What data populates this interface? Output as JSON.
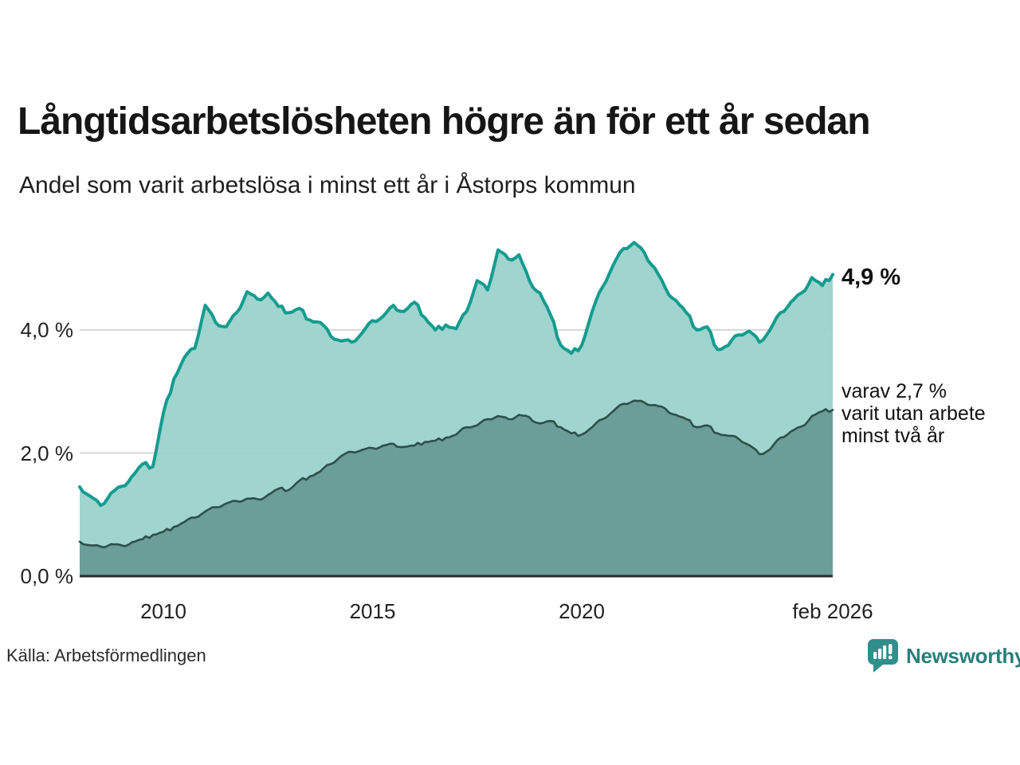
{
  "header": {
    "title": "Långtidsarbetslösheten högre än för ett år sedan",
    "subtitle": "Andel som varit arbetslösa i minst ett år i Åstorps kommun"
  },
  "chart_data": {
    "type": "area",
    "title": "Långtidsarbetslösheten högre än för ett år sedan",
    "subtitle": "Andel som varit arbetslösa i minst ett år i Åstorps kommun",
    "unit": "%",
    "resolution": "quarterly",
    "x_start": "2008-02",
    "x_end": "2026-02",
    "ylim": [
      0,
      5.6
    ],
    "grid": "horizontal",
    "colors": {
      "longterm_line": "#169b8f",
      "longterm_fill": "#98d2ca",
      "verylong_line": "#2e4f49",
      "verylong_fill": "#679995",
      "gridline": "#d8d8d8",
      "axis": "#2a2a2a"
    },
    "y_ticks": [
      {
        "label": "0,0 %",
        "value": 0
      },
      {
        "label": "2,0 %",
        "value": 2
      },
      {
        "label": "4,0 %",
        "value": 4
      }
    ],
    "x_ticks": [
      {
        "label": "2010",
        "index": 8
      },
      {
        "label": "2015",
        "index": 28
      },
      {
        "label": "2020",
        "index": 48
      },
      {
        "label": "feb 2026",
        "index": 72
      }
    ],
    "series": [
      {
        "name": "Arbetslösa minst ett år",
        "end_value": 4.9,
        "values": [
          1.45,
          1.3,
          1.15,
          1.35,
          1.46,
          1.62,
          1.82,
          1.78,
          2.65,
          3.2,
          3.55,
          3.7,
          4.4,
          4.12,
          4.05,
          4.28,
          4.62,
          4.5,
          4.6,
          4.38,
          4.28,
          4.35,
          4.16,
          4.12,
          3.9,
          3.82,
          3.8,
          3.95,
          4.15,
          4.22,
          4.4,
          4.3,
          4.45,
          4.2,
          4.0,
          4.08,
          4.02,
          4.3,
          4.8,
          4.65,
          5.3,
          5.15,
          5.22,
          4.8,
          4.6,
          4.25,
          3.75,
          3.62,
          3.75,
          4.3,
          4.7,
          5.05,
          5.32,
          5.42,
          5.25,
          5.0,
          4.68,
          4.48,
          4.28,
          4.0,
          4.05,
          3.68,
          3.75,
          3.92,
          3.98,
          3.8,
          4.0,
          4.28,
          4.45,
          4.6,
          4.85,
          4.72,
          4.9
        ]
      },
      {
        "name": "varav arbetslösa minst två år",
        "end_value": 2.7,
        "values": [
          0.56,
          0.5,
          0.48,
          0.52,
          0.5,
          0.55,
          0.6,
          0.67,
          0.72,
          0.8,
          0.88,
          0.95,
          1.05,
          1.12,
          1.18,
          1.22,
          1.26,
          1.25,
          1.32,
          1.42,
          1.4,
          1.55,
          1.62,
          1.7,
          1.82,
          1.95,
          2.02,
          2.05,
          2.08,
          2.12,
          2.15,
          2.1,
          2.12,
          2.18,
          2.2,
          2.25,
          2.3,
          2.42,
          2.45,
          2.55,
          2.6,
          2.55,
          2.62,
          2.58,
          2.48,
          2.52,
          2.42,
          2.32,
          2.3,
          2.42,
          2.55,
          2.68,
          2.8,
          2.85,
          2.82,
          2.78,
          2.72,
          2.62,
          2.55,
          2.42,
          2.45,
          2.32,
          2.28,
          2.23,
          2.13,
          1.98,
          2.06,
          2.25,
          2.35,
          2.43,
          2.6,
          2.68,
          2.7
        ]
      }
    ]
  },
  "annotations": {
    "series1_value": "4,9 %",
    "series2_line1": "varav 2,7 %",
    "series2_line2": "varit utan arbete",
    "series2_line3": "minst två år"
  },
  "footer": {
    "source": "Källa: Arbetsförmedlingen",
    "brand": "Newsworthy"
  }
}
